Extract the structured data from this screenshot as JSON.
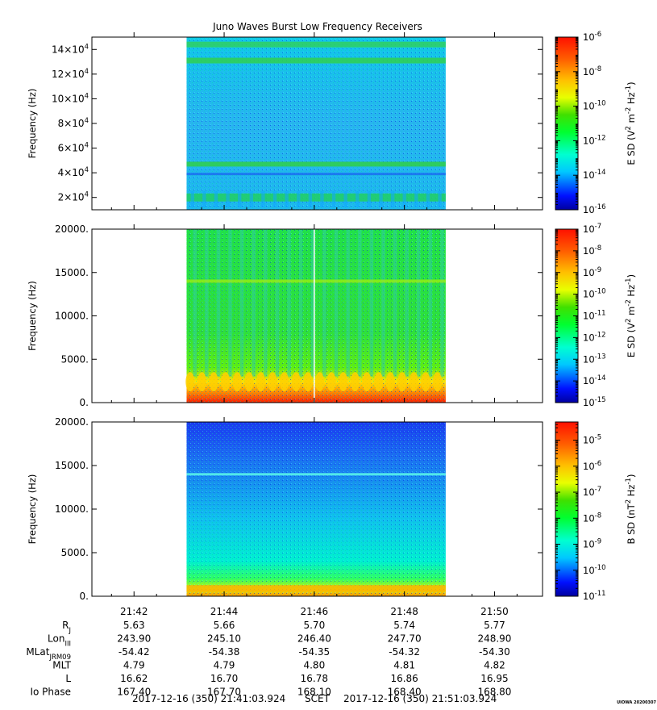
{
  "title": "Juno Waves Burst Low Frequency Receivers",
  "credit": "UIOWA 20200307",
  "x_tick_labels": [
    "21:42",
    "21:44",
    "21:46",
    "21:48",
    "21:50"
  ],
  "ephemeris": {
    "rows": [
      {
        "label": "R",
        "sub": "J",
        "values": [
          "5.63",
          "5.66",
          "5.70",
          "5.74",
          "5.77"
        ]
      },
      {
        "label": "Lon",
        "sub": "III",
        "values": [
          "243.90",
          "245.10",
          "246.40",
          "247.70",
          "248.90"
        ]
      },
      {
        "label": "MLat",
        "sub": "JRM09",
        "values": [
          "-54.42",
          "-54.38",
          "-54.35",
          "-54.32",
          "-54.30"
        ]
      },
      {
        "label": "MLT",
        "sub": "",
        "values": [
          "4.79",
          "4.79",
          "4.80",
          "4.81",
          "4.82"
        ]
      },
      {
        "label": "L",
        "sub": "",
        "values": [
          "16.62",
          "16.70",
          "16.78",
          "16.86",
          "16.95"
        ]
      },
      {
        "label": "Io Phase",
        "sub": "",
        "values": [
          "167.40",
          "167.70",
          "168.10",
          "168.40",
          "168.80"
        ]
      }
    ]
  },
  "footer": {
    "start": "2017-12-16 (350) 21:41:03.924",
    "axis_name": "SCET",
    "end": "2017-12-16 (350) 21:51:03.924"
  },
  "chart_data": [
    {
      "type": "heatmap",
      "panel": "top",
      "x_range": [
        "21:41:03.924",
        "21:51:03.924"
      ],
      "data_coverage": [
        "21:43:10",
        "21:48:55"
      ],
      "ylabel": "Frequency (Hz)",
      "ylim": [
        10000,
        150000
      ],
      "y_ticks": [
        {
          "value": 20000,
          "mant": "2",
          "exp": "4"
        },
        {
          "value": 40000,
          "mant": "4",
          "exp": "4"
        },
        {
          "value": 60000,
          "mant": "6",
          "exp": "4"
        },
        {
          "value": 80000,
          "mant": "8",
          "exp": "4"
        },
        {
          "value": 100000,
          "mant": "10",
          "exp": "4"
        },
        {
          "value": 120000,
          "mant": "12",
          "exp": "4"
        },
        {
          "value": 140000,
          "mant": "14",
          "exp": "4"
        }
      ],
      "colorbar": {
        "label_parts": [
          {
            "t": "E SD (V"
          },
          {
            "t": "2",
            "sup": true
          },
          {
            "t": " m"
          },
          {
            "t": "-2",
            "sup": true
          },
          {
            "t": " Hz"
          },
          {
            "t": "-1",
            "sup": true
          },
          {
            "t": ")"
          }
        ],
        "scale": "log",
        "range": [
          -16,
          -6
        ],
        "ticks": [
          -6,
          -8,
          -10,
          -12,
          -14,
          -16
        ]
      }
    },
    {
      "type": "heatmap",
      "panel": "middle",
      "x_range": [
        "21:41:03.924",
        "21:51:03.924"
      ],
      "data_coverage": [
        "21:43:10",
        "21:48:55"
      ],
      "ylabel": "Frequency (Hz)",
      "ylim": [
        0,
        20000
      ],
      "y_ticks": [
        {
          "value": 0,
          "label": "0."
        },
        {
          "value": 5000,
          "label": "5000."
        },
        {
          "value": 10000,
          "label": "10000."
        },
        {
          "value": 15000,
          "label": "15000."
        },
        {
          "value": 20000,
          "label": "20000."
        }
      ],
      "colorbar": {
        "label_parts": [
          {
            "t": "E SD (V"
          },
          {
            "t": "2",
            "sup": true
          },
          {
            "t": " m"
          },
          {
            "t": "-2",
            "sup": true
          },
          {
            "t": " Hz"
          },
          {
            "t": "-1",
            "sup": true
          },
          {
            "t": ")"
          }
        ],
        "scale": "log",
        "range": [
          -15,
          -7
        ],
        "ticks": [
          -7,
          -8,
          -9,
          -10,
          -11,
          -12,
          -13,
          -14,
          -15
        ]
      }
    },
    {
      "type": "heatmap",
      "panel": "bottom",
      "x_range": [
        "21:41:03.924",
        "21:51:03.924"
      ],
      "data_coverage": [
        "21:43:10",
        "21:48:55"
      ],
      "ylabel": "Frequency (Hz)",
      "ylim": [
        0,
        20000
      ],
      "y_ticks": [
        {
          "value": 0,
          "label": "0."
        },
        {
          "value": 5000,
          "label": "5000."
        },
        {
          "value": 10000,
          "label": "10000."
        },
        {
          "value": 15000,
          "label": "15000."
        },
        {
          "value": 20000,
          "label": "20000."
        }
      ],
      "colorbar": {
        "label_parts": [
          {
            "t": "B SD (nT"
          },
          {
            "t": "2",
            "sup": true
          },
          {
            "t": " Hz"
          },
          {
            "t": "-1",
            "sup": true
          },
          {
            "t": ")"
          }
        ],
        "scale": "log",
        "range": [
          -11,
          -4.3
        ],
        "ticks": [
          -5,
          -6,
          -7,
          -8,
          -9,
          -10,
          -11
        ]
      }
    }
  ]
}
